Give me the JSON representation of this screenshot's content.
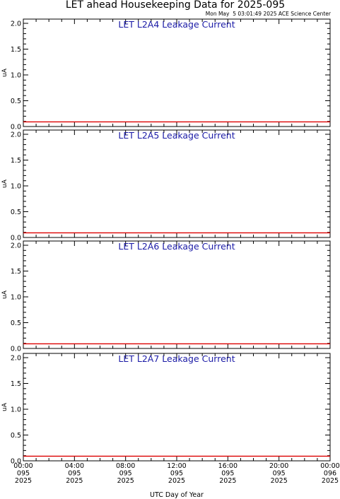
{
  "header": {
    "title": "LET ahead Housekeeping Data for 2025-095",
    "timestamp": "Mon May  5 03:01:49 2025 ACE Science Center"
  },
  "x_axis": {
    "title": "UTC Day of Year",
    "ticks": [
      {
        "time": "00:00",
        "doy": "095",
        "year": "2025"
      },
      {
        "time": "04:00",
        "doy": "095",
        "year": "2025"
      },
      {
        "time": "08:00",
        "doy": "095",
        "year": "2025"
      },
      {
        "time": "12:00",
        "doy": "095",
        "year": "2025"
      },
      {
        "time": "16:00",
        "doy": "095",
        "year": "2025"
      },
      {
        "time": "20:00",
        "doy": "095",
        "year": "2025"
      },
      {
        "time": "00:00",
        "doy": "096",
        "year": "2025"
      }
    ]
  },
  "colors": {
    "line": "#dd0000",
    "panel_title": "#1a1aa6"
  },
  "chart_data": [
    {
      "type": "line",
      "title": "LET L2A4 Leakage Current",
      "ylabel": "uA",
      "ylim": [
        0,
        2.0
      ],
      "yticks": [
        "0.0",
        "0.5",
        "1.0",
        "1.5",
        "2.0"
      ],
      "xlim": [
        "2025-095 00:00",
        "2025-096 00:00"
      ],
      "series": [
        {
          "x": [
            "2025-095 00:00",
            "2025-096 00:00"
          ],
          "values": [
            0.09,
            0.09
          ]
        }
      ]
    },
    {
      "type": "line",
      "title": "LET L2A5 Leakage Current",
      "ylabel": "uA",
      "ylim": [
        0,
        2.0
      ],
      "yticks": [
        "0.0",
        "0.5",
        "1.0",
        "1.5",
        "2.0"
      ],
      "xlim": [
        "2025-095 00:00",
        "2025-096 00:00"
      ],
      "series": [
        {
          "x": [
            "2025-095 00:00",
            "2025-096 00:00"
          ],
          "values": [
            0.09,
            0.09
          ]
        }
      ]
    },
    {
      "type": "line",
      "title": "LET L2A6 Leakage Current",
      "ylabel": "uA",
      "ylim": [
        0,
        2.0
      ],
      "yticks": [
        "0.0",
        "0.5",
        "1.0",
        "1.5",
        "2.0"
      ],
      "xlim": [
        "2025-095 00:00",
        "2025-096 00:00"
      ],
      "series": [
        {
          "x": [
            "2025-095 00:00",
            "2025-096 00:00"
          ],
          "values": [
            0.09,
            0.09
          ]
        }
      ]
    },
    {
      "type": "line",
      "title": "LET L2A7 Leakage Current",
      "ylabel": "uA",
      "ylim": [
        0,
        2.0
      ],
      "yticks": [
        "0.0",
        "0.5",
        "1.0",
        "1.5",
        "2.0"
      ],
      "xlim": [
        "2025-095 00:00",
        "2025-096 00:00"
      ],
      "series": [
        {
          "x": [
            "2025-095 00:00",
            "2025-096 00:00"
          ],
          "values": [
            0.09,
            0.09
          ]
        }
      ]
    }
  ]
}
